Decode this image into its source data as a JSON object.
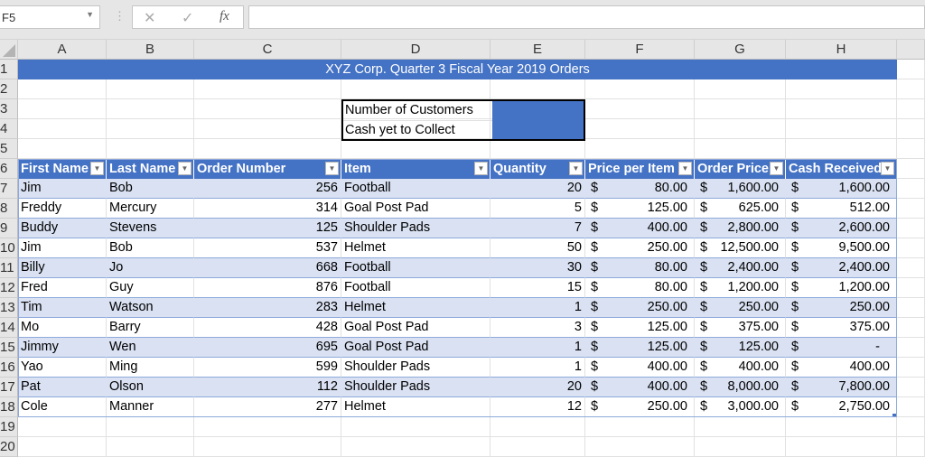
{
  "formula_bar": {
    "name_box": "F5",
    "cancel_icon": "✕",
    "enter_icon": "✓",
    "fx_label": "fx",
    "formula_value": ""
  },
  "columns": [
    "A",
    "B",
    "C",
    "D",
    "E",
    "F",
    "G",
    "H"
  ],
  "rows": [
    "1",
    "2",
    "3",
    "4",
    "5",
    "6",
    "7",
    "8",
    "9",
    "10",
    "11",
    "12",
    "13",
    "14",
    "15",
    "16",
    "17",
    "18",
    "19",
    "20"
  ],
  "sheet": {
    "title": "XYZ Corp. Quarter 3 Fiscal Year 2019 Orders",
    "summary": {
      "customers_label": "Number of Customers",
      "customers_value": "",
      "cash_label": "Cash yet to Collect",
      "cash_value": ""
    },
    "table": {
      "headers": [
        "First Name",
        "Last Name",
        "Order Number",
        "Item",
        "Quantity",
        "Price per Item",
        "Order Price",
        "Cash Received"
      ],
      "currency_symbol": "$",
      "rows": [
        {
          "first": "Jim",
          "last": "Bob",
          "order": "256",
          "item": "Football",
          "qty": "20",
          "price": "80.00",
          "order_price": "1,600.00",
          "cash": "1,600.00"
        },
        {
          "first": "Freddy",
          "last": "Mercury",
          "order": "314",
          "item": "Goal Post Pad",
          "qty": "5",
          "price": "125.00",
          "order_price": "625.00",
          "cash": "512.00"
        },
        {
          "first": "Buddy",
          "last": "Stevens",
          "order": "125",
          "item": "Shoulder Pads",
          "qty": "7",
          "price": "400.00",
          "order_price": "2,800.00",
          "cash": "2,600.00"
        },
        {
          "first": "Jim",
          "last": "Bob",
          "order": "537",
          "item": "Helmet",
          "qty": "50",
          "price": "250.00",
          "order_price": "12,500.00",
          "cash": "9,500.00"
        },
        {
          "first": "Billy",
          "last": "Jo",
          "order": "668",
          "item": "Football",
          "qty": "30",
          "price": "80.00",
          "order_price": "2,400.00",
          "cash": "2,400.00"
        },
        {
          "first": "Fred",
          "last": "Guy",
          "order": "876",
          "item": "Football",
          "qty": "15",
          "price": "80.00",
          "order_price": "1,200.00",
          "cash": "1,200.00"
        },
        {
          "first": "Tim",
          "last": "Watson",
          "order": "283",
          "item": "Helmet",
          "qty": "1",
          "price": "250.00",
          "order_price": "250.00",
          "cash": "250.00"
        },
        {
          "first": "Mo",
          "last": "Barry",
          "order": "428",
          "item": "Goal Post Pad",
          "qty": "3",
          "price": "125.00",
          "order_price": "375.00",
          "cash": "375.00"
        },
        {
          "first": "Jimmy",
          "last": "Wen",
          "order": "695",
          "item": "Goal Post Pad",
          "qty": "1",
          "price": "125.00",
          "order_price": "125.00",
          "cash": "-"
        },
        {
          "first": "Yao",
          "last": "Ming",
          "order": "599",
          "item": "Shoulder Pads",
          "qty": "1",
          "price": "400.00",
          "order_price": "400.00",
          "cash": "400.00"
        },
        {
          "first": "Pat",
          "last": "Olson",
          "order": "112",
          "item": "Shoulder Pads",
          "qty": "20",
          "price": "400.00",
          "order_price": "8,000.00",
          "cash": "7,800.00"
        },
        {
          "first": "Cole",
          "last": "Manner",
          "order": "277",
          "item": "Helmet",
          "qty": "12",
          "price": "250.00",
          "order_price": "3,000.00",
          "cash": "2,750.00"
        }
      ]
    }
  },
  "colors": {
    "accent": "#4472c4",
    "band": "#d9e1f2"
  }
}
